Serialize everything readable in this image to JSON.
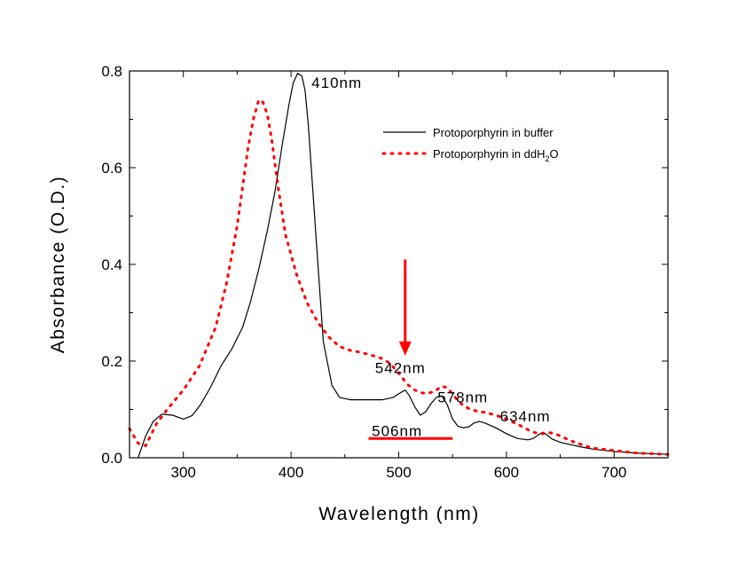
{
  "chart_data": {
    "type": "line",
    "title": "",
    "xlabel": "Wavelength (nm)",
    "ylabel": "Absorbance (O.D.)",
    "xlim": [
      250,
      750
    ],
    "ylim": [
      0.0,
      0.8
    ],
    "xticks": [
      300,
      400,
      500,
      600,
      700
    ],
    "xtick_labels": [
      "300",
      "400",
      "500",
      "600",
      "700"
    ],
    "yticks": [
      0.0,
      0.2,
      0.4,
      0.6,
      0.8
    ],
    "ytick_labels": [
      "0.0",
      "0.2",
      "0.4",
      "0.6",
      "0.8"
    ],
    "grid": false,
    "legend_position": "top-right",
    "series": [
      {
        "name": "Protoporphyrin in buffer",
        "style": "solid",
        "color": "#000000",
        "x": [
          258,
          265,
          272,
          280,
          290,
          300,
          308,
          316,
          325,
          335,
          345,
          355,
          362,
          370,
          378,
          385,
          392,
          398,
          402,
          406,
          410,
          413,
          416,
          420,
          425,
          430,
          438,
          445,
          455,
          465,
          475,
          485,
          495,
          502,
          506,
          510,
          515,
          520,
          525,
          530,
          535,
          540,
          545,
          550,
          555,
          560,
          565,
          570,
          575,
          580,
          590,
          600,
          610,
          620,
          625,
          630,
          634,
          638,
          642,
          650,
          660,
          670,
          680,
          700,
          720,
          750
        ],
        "values": [
          0.0,
          0.045,
          0.075,
          0.09,
          0.088,
          0.08,
          0.087,
          0.11,
          0.145,
          0.19,
          0.225,
          0.27,
          0.32,
          0.39,
          0.47,
          0.55,
          0.65,
          0.73,
          0.775,
          0.795,
          0.79,
          0.76,
          0.69,
          0.56,
          0.4,
          0.24,
          0.15,
          0.125,
          0.12,
          0.12,
          0.12,
          0.12,
          0.125,
          0.135,
          0.14,
          0.128,
          0.105,
          0.088,
          0.095,
          0.112,
          0.125,
          0.128,
          0.11,
          0.08,
          0.065,
          0.062,
          0.064,
          0.072,
          0.075,
          0.072,
          0.062,
          0.05,
          0.04,
          0.037,
          0.04,
          0.048,
          0.053,
          0.047,
          0.039,
          0.032,
          0.027,
          0.022,
          0.018,
          0.013,
          0.01,
          0.007
        ]
      },
      {
        "name": "Protoporphyrin in ddH2O",
        "style": "dotted",
        "color": "#ff0000",
        "x": [
          250,
          258,
          265,
          275,
          285,
          300,
          315,
          330,
          340,
          350,
          355,
          360,
          365,
          370,
          374,
          378,
          382,
          388,
          395,
          405,
          415,
          425,
          435,
          445,
          455,
          465,
          475,
          485,
          492,
          500,
          508,
          515,
          520,
          525,
          530,
          535,
          540,
          545,
          550,
          555,
          560,
          565,
          570,
          575,
          580,
          590,
          600,
          610,
          615,
          620,
          625,
          630,
          635,
          640,
          645,
          650,
          660,
          670,
          680,
          700,
          720,
          750
        ],
        "values": [
          0.06,
          0.03,
          0.025,
          0.07,
          0.1,
          0.14,
          0.19,
          0.27,
          0.36,
          0.48,
          0.56,
          0.64,
          0.7,
          0.74,
          0.735,
          0.71,
          0.66,
          0.56,
          0.46,
          0.38,
          0.32,
          0.28,
          0.25,
          0.23,
          0.222,
          0.218,
          0.212,
          0.205,
          0.195,
          0.175,
          0.152,
          0.14,
          0.135,
          0.133,
          0.135,
          0.14,
          0.148,
          0.145,
          0.132,
          0.118,
          0.108,
          0.102,
          0.098,
          0.095,
          0.094,
          0.088,
          0.08,
          0.07,
          0.064,
          0.058,
          0.053,
          0.05,
          0.05,
          0.052,
          0.05,
          0.045,
          0.035,
          0.027,
          0.02,
          0.015,
          0.01,
          0.007
        ]
      }
    ],
    "annotations": [
      {
        "text": "410nm",
        "x": 419,
        "y": 0.765
      },
      {
        "text": "542nm",
        "x": 478,
        "y": 0.175
      },
      {
        "text": "578nm",
        "x": 536,
        "y": 0.115
      },
      {
        "text": "634nm",
        "x": 594,
        "y": 0.075
      },
      {
        "text": "506nm",
        "x": 475,
        "y": 0.045
      }
    ],
    "arrow": {
      "x": 506,
      "y_start": 0.41,
      "y_end": 0.215,
      "color": "#ff0000"
    },
    "bar": {
      "x_start": 472,
      "x_end": 550,
      "y": 0.04,
      "color": "#ff0000"
    }
  }
}
